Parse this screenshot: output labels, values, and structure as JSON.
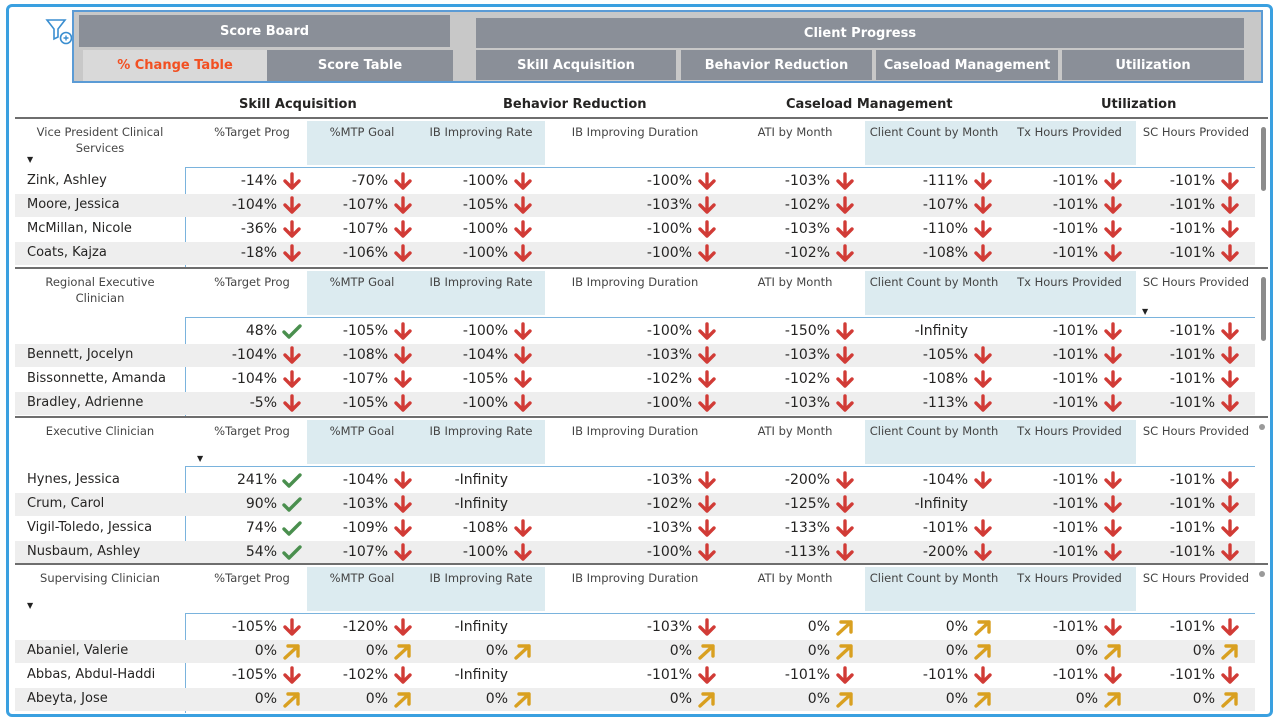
{
  "nav": {
    "score_board": "Score Board",
    "change_table": "% Change Table",
    "score_table": "Score Table",
    "client_progress": "Client Progress",
    "skill_acquisition": "Skill Acquisition",
    "behavior_reduction": "Behavior Reduction",
    "caseload_management": "Caseload Management",
    "utilization": "Utilization"
  },
  "section_headers": [
    "Skill Acquisition",
    "Behavior Reduction",
    "Caseload Management",
    "Utilization"
  ],
  "colors": {
    "up": "#4a8f4e",
    "down": "#d13b36",
    "neutral": "#d9a020",
    "accent": "#f25022",
    "highlight": "#dcebf0"
  },
  "tables": [
    {
      "headers": [
        "Vice President Clinical Services",
        "%Target Prog",
        "%MTP Goal",
        "IB Improving Rate",
        "IB Improving Duration",
        "ATI by Month",
        "Client Count by Month",
        "Tx Hours Provided",
        "SC Hours Provided"
      ],
      "rows": [
        {
          "name": "Zink, Ashley",
          "cells": [
            [
              "-14%",
              "down"
            ],
            [
              "-70%",
              "down"
            ],
            [
              "-100%",
              "down"
            ],
            [
              "-100%",
              "down"
            ],
            [
              "-103%",
              "down"
            ],
            [
              "-111%",
              "down"
            ],
            [
              "-101%",
              "down"
            ],
            [
              "-101%",
              "down"
            ]
          ]
        },
        {
          "name": "Moore, Jessica",
          "cells": [
            [
              "-104%",
              "down"
            ],
            [
              "-107%",
              "down"
            ],
            [
              "-105%",
              "down"
            ],
            [
              "-103%",
              "down"
            ],
            [
              "-102%",
              "down"
            ],
            [
              "-107%",
              "down"
            ],
            [
              "-101%",
              "down"
            ],
            [
              "-101%",
              "down"
            ]
          ]
        },
        {
          "name": "McMillan, Nicole",
          "cells": [
            [
              "-36%",
              "down"
            ],
            [
              "-107%",
              "down"
            ],
            [
              "-100%",
              "down"
            ],
            [
              "-100%",
              "down"
            ],
            [
              "-103%",
              "down"
            ],
            [
              "-110%",
              "down"
            ],
            [
              "-101%",
              "down"
            ],
            [
              "-101%",
              "down"
            ]
          ]
        },
        {
          "name": "Coats, Kajza",
          "cells": [
            [
              "-18%",
              "down"
            ],
            [
              "-106%",
              "down"
            ],
            [
              "-100%",
              "down"
            ],
            [
              "-100%",
              "down"
            ],
            [
              "-102%",
              "down"
            ],
            [
              "-108%",
              "down"
            ],
            [
              "-101%",
              "down"
            ],
            [
              "-101%",
              "down"
            ]
          ]
        }
      ]
    },
    {
      "headers": [
        "Regional Executive Clinician",
        "%Target Prog",
        "%MTP Goal",
        "IB Improving Rate",
        "IB Improving Duration",
        "ATI by Month",
        "Client Count by Month",
        "Tx Hours Provided",
        "SC Hours Provided"
      ],
      "rows": [
        {
          "name": "",
          "cells": [
            [
              "48%",
              "up"
            ],
            [
              "-105%",
              "down"
            ],
            [
              "-100%",
              "down"
            ],
            [
              "-100%",
              "down"
            ],
            [
              "-150%",
              "down"
            ],
            [
              "-Infinity",
              ""
            ],
            [
              "-101%",
              "down"
            ],
            [
              "-101%",
              "down"
            ]
          ]
        },
        {
          "name": "Bennett, Jocelyn",
          "cells": [
            [
              "-104%",
              "down"
            ],
            [
              "-108%",
              "down"
            ],
            [
              "-104%",
              "down"
            ],
            [
              "-103%",
              "down"
            ],
            [
              "-103%",
              "down"
            ],
            [
              "-105%",
              "down"
            ],
            [
              "-101%",
              "down"
            ],
            [
              "-101%",
              "down"
            ]
          ]
        },
        {
          "name": "Bissonnette, Amanda",
          "cells": [
            [
              "-104%",
              "down"
            ],
            [
              "-107%",
              "down"
            ],
            [
              "-105%",
              "down"
            ],
            [
              "-102%",
              "down"
            ],
            [
              "-102%",
              "down"
            ],
            [
              "-108%",
              "down"
            ],
            [
              "-101%",
              "down"
            ],
            [
              "-101%",
              "down"
            ]
          ]
        },
        {
          "name": "Bradley, Adrienne",
          "cells": [
            [
              "-5%",
              "down"
            ],
            [
              "-105%",
              "down"
            ],
            [
              "-100%",
              "down"
            ],
            [
              "-100%",
              "down"
            ],
            [
              "-103%",
              "down"
            ],
            [
              "-113%",
              "down"
            ],
            [
              "-101%",
              "down"
            ],
            [
              "-101%",
              "down"
            ]
          ]
        }
      ]
    },
    {
      "headers": [
        "Executive Clinician",
        "%Target Prog",
        "%MTP Goal",
        "IB Improving Rate",
        "IB Improving Duration",
        "ATI by Month",
        "Client Count by Month",
        "Tx Hours Provided",
        "SC Hours Provided"
      ],
      "rows": [
        {
          "name": "Hynes, Jessica",
          "cells": [
            [
              "241%",
              "up"
            ],
            [
              "-104%",
              "down"
            ],
            [
              "-Infinity",
              ""
            ],
            [
              "-103%",
              "down"
            ],
            [
              "-200%",
              "down"
            ],
            [
              "-104%",
              "down"
            ],
            [
              "-101%",
              "down"
            ],
            [
              "-101%",
              "down"
            ]
          ]
        },
        {
          "name": "Crum, Carol",
          "cells": [
            [
              "90%",
              "up"
            ],
            [
              "-103%",
              "down"
            ],
            [
              "-Infinity",
              ""
            ],
            [
              "-102%",
              "down"
            ],
            [
              "-125%",
              "down"
            ],
            [
              "-Infinity",
              ""
            ],
            [
              "-101%",
              "down"
            ],
            [
              "-101%",
              "down"
            ]
          ]
        },
        {
          "name": "Vigil-Toledo, Jessica",
          "cells": [
            [
              "74%",
              "up"
            ],
            [
              "-109%",
              "down"
            ],
            [
              "-108%",
              "down"
            ],
            [
              "-103%",
              "down"
            ],
            [
              "-133%",
              "down"
            ],
            [
              "-101%",
              "down"
            ],
            [
              "-101%",
              "down"
            ],
            [
              "-101%",
              "down"
            ]
          ]
        },
        {
          "name": "Nusbaum, Ashley",
          "cells": [
            [
              "54%",
              "up"
            ],
            [
              "-107%",
              "down"
            ],
            [
              "-100%",
              "down"
            ],
            [
              "-100%",
              "down"
            ],
            [
              "-113%",
              "down"
            ],
            [
              "-200%",
              "down"
            ],
            [
              "-101%",
              "down"
            ],
            [
              "-101%",
              "down"
            ]
          ]
        }
      ]
    },
    {
      "headers": [
        "Supervising Clinician",
        "%Target Prog",
        "%MTP Goal",
        "IB Improving Rate",
        "IB Improving Duration",
        "ATI by Month",
        "Client Count by Month",
        "Tx Hours Provided",
        "SC Hours Provided"
      ],
      "rows": [
        {
          "name": "",
          "cells": [
            [
              "-105%",
              "down"
            ],
            [
              "-120%",
              "down"
            ],
            [
              "-Infinity",
              ""
            ],
            [
              "-103%",
              "down"
            ],
            [
              "0%",
              "neutral"
            ],
            [
              "0%",
              "neutral"
            ],
            [
              "-101%",
              "down"
            ],
            [
              "-101%",
              "down"
            ]
          ]
        },
        {
          "name": "Abaniel, Valerie",
          "cells": [
            [
              "0%",
              "neutral"
            ],
            [
              "0%",
              "neutral"
            ],
            [
              "0%",
              "neutral"
            ],
            [
              "0%",
              "neutral"
            ],
            [
              "0%",
              "neutral"
            ],
            [
              "0%",
              "neutral"
            ],
            [
              "0%",
              "neutral"
            ],
            [
              "0%",
              "neutral"
            ]
          ]
        },
        {
          "name": "Abbas, Abdul-Haddi",
          "cells": [
            [
              "-105%",
              "down"
            ],
            [
              "-102%",
              "down"
            ],
            [
              "-Infinity",
              ""
            ],
            [
              "-101%",
              "down"
            ],
            [
              "-101%",
              "down"
            ],
            [
              "-101%",
              "down"
            ],
            [
              "-101%",
              "down"
            ],
            [
              "-101%",
              "down"
            ]
          ]
        },
        {
          "name": "Abeyta, Jose",
          "cells": [
            [
              "0%",
              "neutral"
            ],
            [
              "0%",
              "neutral"
            ],
            [
              "0%",
              "neutral"
            ],
            [
              "0%",
              "neutral"
            ],
            [
              "0%",
              "neutral"
            ],
            [
              "0%",
              "neutral"
            ],
            [
              "0%",
              "neutral"
            ],
            [
              "0%",
              "neutral"
            ]
          ]
        }
      ]
    }
  ]
}
